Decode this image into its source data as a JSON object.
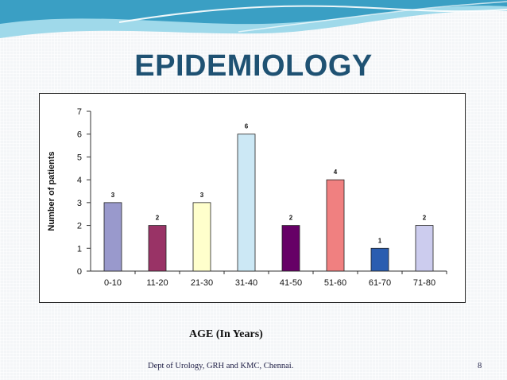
{
  "slide": {
    "title": "EPIDEMIOLOGY",
    "caption": "AGE (In Years)",
    "footer": "Dept of Urology, GRH and KMC, Chennai.",
    "page_number": "8"
  },
  "colors": {
    "title": "#1f5273",
    "wave_dark": "#3a9fc4",
    "wave_light": "#9fd9ea"
  },
  "chart_data": {
    "type": "bar",
    "title": "",
    "xlabel": "",
    "ylabel": "Number of patients",
    "ylim": [
      0,
      7
    ],
    "yticks": [
      0,
      1,
      2,
      3,
      4,
      5,
      6,
      7
    ],
    "grid": false,
    "categories": [
      "0-10",
      "11-20",
      "21-30",
      "31-40",
      "41-50",
      "51-60",
      "61-70",
      "71-80"
    ],
    "values": [
      3,
      2,
      3,
      6,
      2,
      4,
      1,
      2
    ],
    "data_labels": [
      "3",
      "2",
      "3",
      "6",
      "2",
      "4",
      "1",
      "2"
    ],
    "bar_colors": [
      "#9999cc",
      "#993366",
      "#ffffcc",
      "#cce8f5",
      "#660066",
      "#f08080",
      "#2a5db0",
      "#ccccee"
    ]
  }
}
